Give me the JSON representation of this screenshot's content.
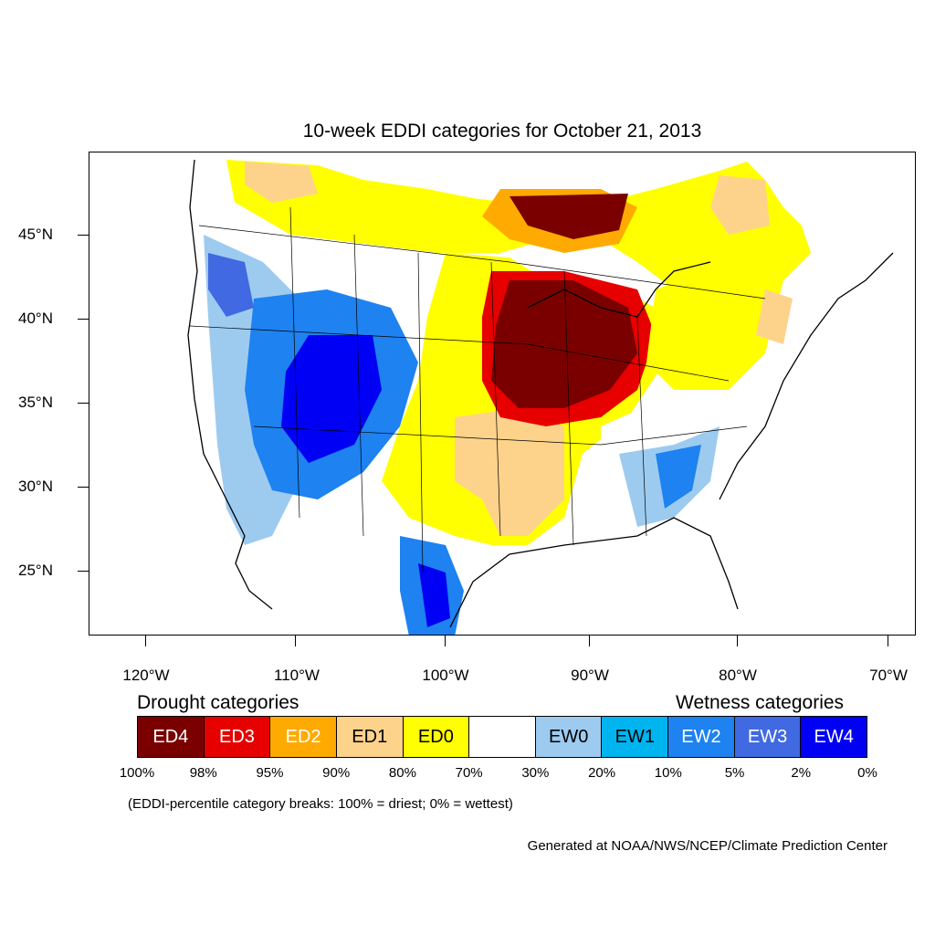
{
  "title": "10-week EDDI categories for October 21, 2013",
  "lat_labels": [
    "45°N",
    "40°N",
    "35°N",
    "30°N",
    "25°N"
  ],
  "lon_labels": [
    "120°W",
    "110°W",
    "100°W",
    "90°W",
    "80°W",
    "70°W"
  ],
  "legend": {
    "drought_heading": "Drought categories",
    "wetness_heading": "Wetness categories",
    "categories": [
      {
        "label": "ED4",
        "color": "#7a0000",
        "text_color": "#ffffff"
      },
      {
        "label": "ED3",
        "color": "#e60000",
        "text_color": "#ffffff"
      },
      {
        "label": "ED2",
        "color": "#ffaa00",
        "text_color": "#ffffff"
      },
      {
        "label": "ED1",
        "color": "#fdd38c",
        "text_color": "#000000"
      },
      {
        "label": "ED0",
        "color": "#ffff00",
        "text_color": "#000000"
      },
      {
        "label": "",
        "color": "#ffffff",
        "text_color": "#000000"
      },
      {
        "label": "EW0",
        "color": "#9dcbf0",
        "text_color": "#000000"
      },
      {
        "label": "EW1",
        "color": "#00b4f0",
        "text_color": "#000000"
      },
      {
        "label": "EW2",
        "color": "#1e82f0",
        "text_color": "#ffffff"
      },
      {
        "label": "EW3",
        "color": "#4169e1",
        "text_color": "#ffffff"
      },
      {
        "label": "EW4",
        "color": "#0000f5",
        "text_color": "#ffffff"
      }
    ],
    "percentiles": [
      "100%",
      "98%",
      "95%",
      "90%",
      "80%",
      "70%",
      "30%",
      "20%",
      "10%",
      "5%",
      "2%",
      "0%"
    ]
  },
  "note": "(EDDI-percentile category breaks: 100% = driest; 0% = wettest)",
  "credit": "Generated at NOAA/NWS/NCEP/Climate Prediction Center"
}
